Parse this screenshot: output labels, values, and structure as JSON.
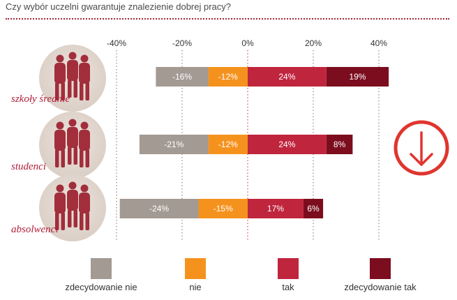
{
  "title": "Czy wybór uczelni gwarantuje znalezienie dobrej pracy?",
  "down_arrow_icon": "down-arrow-icon",
  "colors": {
    "zdecydowanie_nie": "#a39a93",
    "nie": "#f5921e",
    "tak": "#c0253e",
    "zdecydowanie_tak": "#7b0d1e",
    "label": "#b01e3a",
    "arrow": "#e0352f"
  },
  "legend": [
    {
      "label": "zdecydowanie nie",
      "color": "#a39a93"
    },
    {
      "label": "nie",
      "color": "#f5921e"
    },
    {
      "label": "tak",
      "color": "#c0253e"
    },
    {
      "label": "zdecydowanie tak",
      "color": "#7b0d1e"
    }
  ],
  "chart_data": {
    "type": "bar",
    "orientation": "horizontal",
    "stacked": "diverging",
    "title": "Czy wybór uczelni gwarantuje znalezienie dobrej pracy?",
    "categories": [
      "szkoły średnie",
      "studenci",
      "absolwenci"
    ],
    "xlim": [
      -40,
      40
    ],
    "x_ticks": [
      -40,
      -20,
      0,
      20,
      40
    ],
    "x_tick_labels": [
      "-40%",
      "-20%",
      "0%",
      "20%",
      "40%"
    ],
    "series": [
      {
        "name": "zdecydowanie nie",
        "values": [
          -16,
          -21,
          -24
        ],
        "labels": [
          "-16%",
          "-21%",
          "-24%"
        ]
      },
      {
        "name": "nie",
        "values": [
          -12,
          -12,
          -15
        ],
        "labels": [
          "-12%",
          "-12%",
          "-15%"
        ]
      },
      {
        "name": "tak",
        "values": [
          24,
          24,
          17
        ],
        "labels": [
          "24%",
          "24%",
          "17%"
        ]
      },
      {
        "name": "zdecydowanie tak",
        "values": [
          19,
          8,
          6
        ],
        "labels": [
          "19%",
          "8%",
          "6%"
        ]
      }
    ],
    "legend_position": "bottom"
  }
}
